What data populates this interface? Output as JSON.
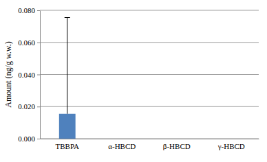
{
  "chart_data": {
    "type": "bar",
    "y_label": "Amount (ng/g w.w.)",
    "categories": [
      "TBBPA",
      "α-HBCD",
      "β-HBCD",
      "γ-HBCD"
    ],
    "values": [
      0.0155,
      0,
      0,
      0
    ],
    "errors": [
      0.06,
      null,
      null,
      null
    ],
    "color": "#4f81bd",
    "ylim": [
      0,
      0.08
    ],
    "yticks": [
      {
        "value": 0,
        "label": "0.000"
      },
      {
        "value": 0.02,
        "label": "0.020"
      },
      {
        "value": 0.04,
        "label": "0.040"
      },
      {
        "value": 0.06,
        "label": "0.060"
      },
      {
        "value": 0.08,
        "label": "0.080"
      }
    ],
    "grid": true
  }
}
